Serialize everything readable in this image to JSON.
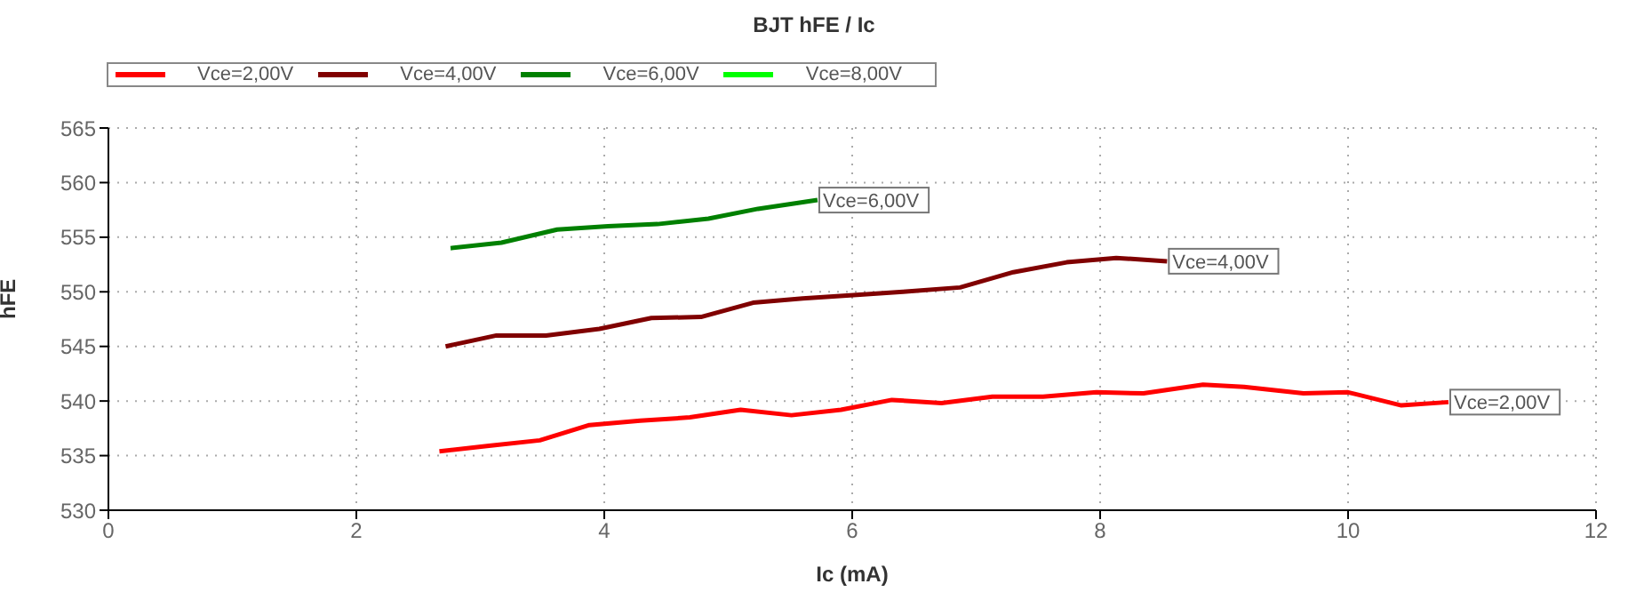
{
  "chart_data": {
    "type": "line",
    "title": "BJT hFE / Ic",
    "xlabel": "Ic (mA)",
    "ylabel": "hFE",
    "xlim": [
      0,
      12
    ],
    "xticks": [
      0,
      2,
      4,
      6,
      8,
      10,
      12
    ],
    "ylim": [
      530,
      565
    ],
    "yticks": [
      530,
      535,
      540,
      545,
      550,
      555,
      560,
      565
    ],
    "grid": true,
    "legend": "top left",
    "marker": "none",
    "line_style": "solid",
    "series": [
      {
        "name": "Vce=2,00V",
        "color": "#ff0000",
        "x": [
          2.67,
          3.07,
          3.48,
          3.88,
          4.29,
          4.69,
          5.1,
          5.51,
          5.91,
          6.32,
          6.72,
          7.13,
          7.54,
          7.97,
          8.35,
          8.83,
          9.16,
          9.64,
          10.0,
          10.43,
          10.81
        ],
        "values": [
          535.4,
          535.9,
          536.4,
          537.8,
          538.2,
          538.5,
          539.2,
          538.7,
          539.2,
          540.1,
          539.8,
          540.4,
          540.4,
          540.8,
          540.7,
          541.5,
          541.3,
          540.7,
          540.8,
          539.6,
          539.9
        ]
      },
      {
        "name": "Vce=4,00V",
        "color": "#800000",
        "x": [
          2.72,
          3.13,
          3.53,
          3.96,
          4.38,
          4.78,
          5.2,
          5.6,
          6.01,
          6.41,
          6.87,
          7.3,
          7.73,
          8.13,
          8.54
        ],
        "values": [
          545.0,
          546.0,
          546.0,
          546.6,
          547.6,
          547.7,
          549.0,
          549.4,
          549.7,
          550.0,
          550.4,
          551.8,
          552.7,
          553.1,
          552.8
        ]
      },
      {
        "name": "Vce=6,00V",
        "color": "#008000",
        "x": [
          2.76,
          3.17,
          3.62,
          4.03,
          4.43,
          4.84,
          5.24,
          5.72
        ],
        "values": [
          554.0,
          554.5,
          555.7,
          556.0,
          556.2,
          556.7,
          557.6,
          558.4
        ]
      },
      {
        "name": "Vce=8,00V",
        "color": "#00ff00"
      }
    ],
    "annotations": [
      {
        "text": "Vce=6,00V",
        "x": 5.72,
        "y": 558.4
      },
      {
        "text": "Vce=4,00V",
        "x": 8.54,
        "y": 552.8
      },
      {
        "text": "Vce=2,00V",
        "x": 10.81,
        "y": 539.9
      }
    ]
  }
}
